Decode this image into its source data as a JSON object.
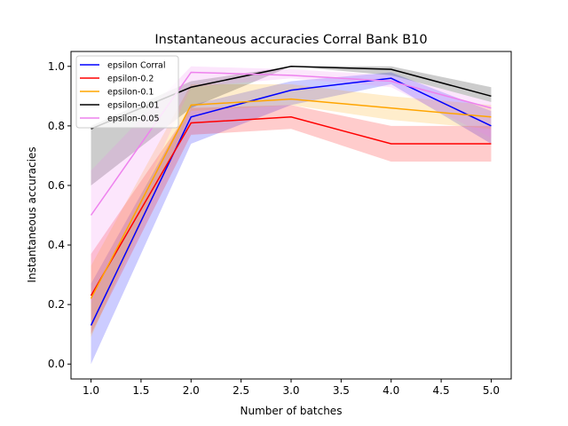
{
  "chart_data": {
    "type": "line",
    "title": "Instantaneous accuracies Corral Bank B10",
    "xlabel": "Number of batches",
    "ylabel": "Instantaneous accuracies",
    "xlim": [
      0.8,
      5.2
    ],
    "ylim": [
      -0.05,
      1.05
    ],
    "xticks": [
      "1.0",
      "1.5",
      "2.0",
      "2.5",
      "3.0",
      "3.5",
      "4.0",
      "4.5",
      "5.0"
    ],
    "yticks": [
      "0.0",
      "0.2",
      "0.4",
      "0.6",
      "0.8",
      "1.0"
    ],
    "legend_position": "top-left",
    "grid": false,
    "x": [
      1,
      2,
      3,
      4,
      5
    ],
    "series": [
      {
        "name": "epsilon Corral",
        "color": "#0000ff",
        "values": [
          0.13,
          0.83,
          0.92,
          0.96,
          0.8
        ],
        "lower": [
          0.0,
          0.74,
          0.87,
          0.94,
          0.74
        ],
        "upper": [
          0.27,
          0.87,
          0.95,
          0.98,
          0.85
        ]
      },
      {
        "name": "epsilon-0.2",
        "color": "#ff0000",
        "values": [
          0.23,
          0.81,
          0.83,
          0.74,
          0.74
        ],
        "lower": [
          0.1,
          0.77,
          0.79,
          0.68,
          0.68
        ],
        "upper": [
          0.37,
          0.86,
          0.87,
          0.8,
          0.8
        ]
      },
      {
        "name": "epsilon-0.1",
        "color": "#ffa500",
        "values": [
          0.22,
          0.87,
          0.89,
          0.86,
          0.83
        ],
        "lower": [
          0.09,
          0.85,
          0.87,
          0.82,
          0.79
        ],
        "upper": [
          0.33,
          0.94,
          0.94,
          0.9,
          0.87
        ]
      },
      {
        "name": "epsilon-0.01",
        "color": "#000000",
        "values": [
          0.79,
          0.93,
          1.0,
          0.99,
          0.9
        ],
        "lower": [
          0.6,
          0.86,
          1.0,
          0.97,
          0.88
        ],
        "upper": [
          0.8,
          0.95,
          1.0,
          1.0,
          0.93
        ]
      },
      {
        "name": "epsilon-0.05",
        "color": "#ee82ee",
        "values": [
          0.5,
          0.98,
          0.97,
          0.95,
          0.86
        ],
        "lower": [
          0.2,
          0.93,
          0.96,
          0.93,
          0.76
        ],
        "upper": [
          0.65,
          1.0,
          0.99,
          0.97,
          0.88
        ]
      }
    ]
  }
}
